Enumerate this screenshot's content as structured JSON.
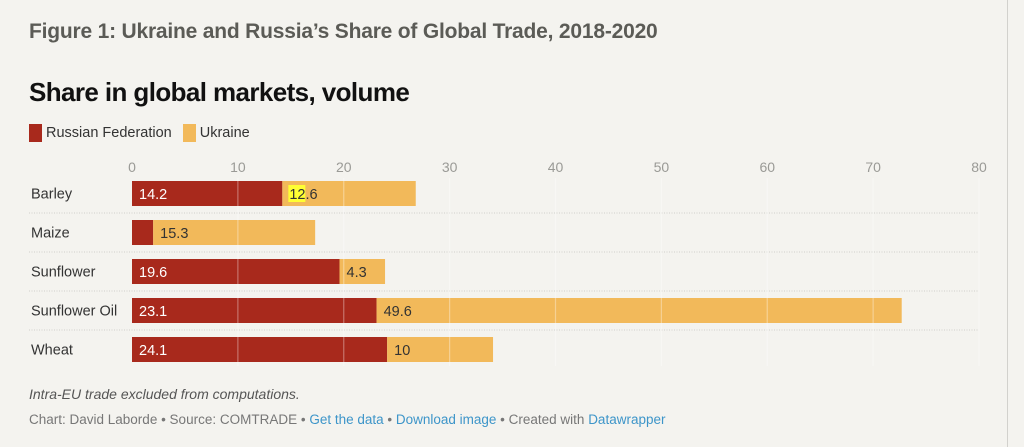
{
  "figure_title": "Figure 1: Ukraine and Russia’s Share of Global Trade, 2018-2020",
  "chart_data": {
    "type": "bar",
    "orientation": "horizontal",
    "stacked": true,
    "title": "Share in global markets, volume",
    "xlabel": "",
    "ylabel": "",
    "xlim": [
      0,
      80
    ],
    "xticks": [
      0,
      10,
      20,
      30,
      40,
      50,
      60,
      70,
      80
    ],
    "grid": true,
    "legend_position": "top-left",
    "categories": [
      "Barley",
      "Maize",
      "Sunflower",
      "Sunflower Oil",
      "Wheat"
    ],
    "series": [
      {
        "name": "Russian Federation",
        "color": "#a8291c",
        "values": [
          14.2,
          2.0,
          19.6,
          23.1,
          24.1
        ],
        "labels": [
          "14.2",
          "",
          "19.6",
          "23.1",
          "24.1"
        ]
      },
      {
        "name": "Ukraine",
        "color": "#f2b95a",
        "values": [
          12.6,
          15.3,
          4.3,
          49.6,
          10
        ],
        "labels": [
          "12.6",
          "15.3",
          "4.3",
          "49.6",
          "10"
        ]
      }
    ],
    "highlight": {
      "category": "Barley",
      "series": "Ukraine",
      "text": "12",
      "color": "#ffff33"
    }
  },
  "legend": [
    {
      "label": "Russian Federation",
      "color": "#a8291c"
    },
    {
      "label": "Ukraine",
      "color": "#f2b95a"
    }
  ],
  "notes": "Intra-EU trade excluded from computations.",
  "credits": {
    "prefix": "Chart: David Laborde • Source: COMTRADE • ",
    "get_data": "Get the data",
    "sep1": " • ",
    "download": "Download image",
    "sep2": " • Created with ",
    "datawrapper": "Datawrapper"
  }
}
